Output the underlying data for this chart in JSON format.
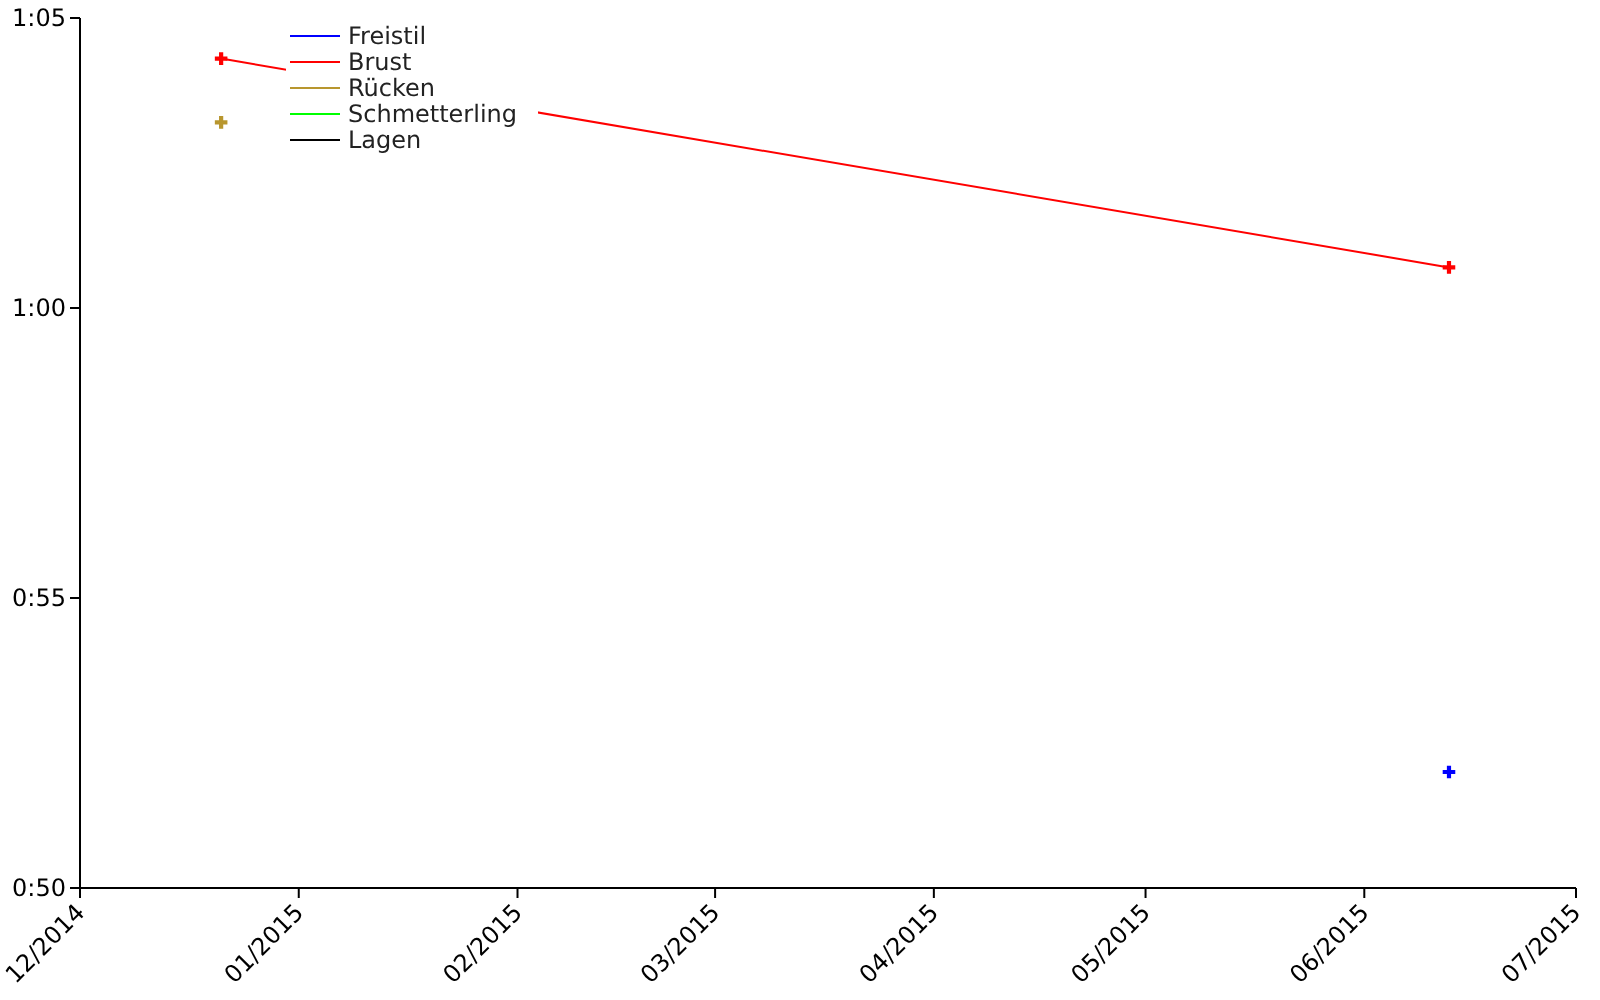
{
  "chart_data": {
    "type": "line",
    "xlim": [
      "2014-12-01",
      "2015-07-01"
    ],
    "xticks": [
      {
        "value": "2014-12-01",
        "label": "12/2014"
      },
      {
        "value": "2015-01-01",
        "label": "01/2015"
      },
      {
        "value": "2015-02-01",
        "label": "02/2015"
      },
      {
        "value": "2015-03-01",
        "label": "03/2015"
      },
      {
        "value": "2015-04-01",
        "label": "04/2015"
      },
      {
        "value": "2015-05-01",
        "label": "05/2015"
      },
      {
        "value": "2015-06-01",
        "label": "06/2015"
      },
      {
        "value": "2015-07-01",
        "label": "07/2015"
      }
    ],
    "ylim": [
      50,
      65
    ],
    "yticks": [
      {
        "value": 50,
        "label": "0:50"
      },
      {
        "value": 55,
        "label": "0:55"
      },
      {
        "value": 60,
        "label": "1:00"
      },
      {
        "value": 65,
        "label": "1:05"
      }
    ],
    "series": [
      {
        "name": "Freistil",
        "color": "#0000ff",
        "x": [
          "2015-06-13"
        ],
        "values": [
          52.0
        ]
      },
      {
        "name": "Brust",
        "color": "#ff0000",
        "x": [
          "2014-12-21",
          "2015-06-13"
        ],
        "values": [
          64.3,
          60.7
        ]
      },
      {
        "name": "Rücken",
        "color": "#b8962e",
        "x": [
          "2014-12-21"
        ],
        "values": [
          63.2
        ]
      },
      {
        "name": "Schmetterling",
        "color": "#00ff00"
      },
      {
        "name": "Lagen",
        "color": "#000000"
      }
    ],
    "marker": "cross",
    "grid": false,
    "legend": "top left"
  }
}
